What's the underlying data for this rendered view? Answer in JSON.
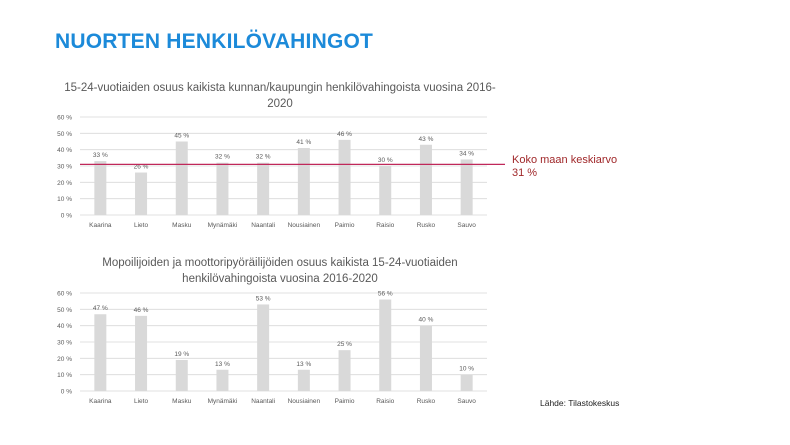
{
  "slide": {
    "title": "NUORTEN HENKILÖVAHINGOT",
    "source": "Lähde: Tilastokeskus"
  },
  "colors": {
    "title": "#1c8ad9",
    "bar": "#d9d9d9",
    "average_line": "#c0285a",
    "average_label": "#a0282a"
  },
  "chart_data": [
    {
      "type": "bar",
      "title": "15-24-vuotiaiden osuus kaikista kunnan/kaupungin henkilövahingoista vuosina 2016-2020",
      "categories": [
        "Kaarina",
        "Lieto",
        "Masku",
        "Mynämäki",
        "Naantali",
        "Nousiainen",
        "Paimio",
        "Raisio",
        "Rusko",
        "Sauvo"
      ],
      "values": [
        33,
        26,
        45,
        32,
        32,
        41,
        46,
        30,
        43,
        34
      ],
      "data_labels": [
        "33 %",
        "26 %",
        "45 %",
        "32 %",
        "32 %",
        "41 %",
        "46 %",
        "30 %",
        "43 %",
        "34 %"
      ],
      "ylim": [
        0,
        60
      ],
      "yticks": [
        "0 %",
        "10 %",
        "20 %",
        "30 %",
        "40 %",
        "50 %",
        "60 %"
      ],
      "grid": true,
      "reference_line": {
        "value": 31,
        "label": "Koko maan keskiarvo 31 %"
      }
    },
    {
      "type": "bar",
      "title": "Mopoilijoiden ja moottoripyöräilijöiden osuus kaikista 15-24-vuotiaiden henkilövahingoista vuosina 2016-2020",
      "categories": [
        "Kaarina",
        "Lieto",
        "Masku",
        "Mynämäki",
        "Naantali",
        "Nousiainen",
        "Paimio",
        "Raisio",
        "Rusko",
        "Sauvo"
      ],
      "values": [
        47,
        46,
        19,
        13,
        53,
        13,
        25,
        56,
        40,
        10
      ],
      "data_labels": [
        "47 %",
        "46 %",
        "19 %",
        "13 %",
        "53 %",
        "13 %",
        "25 %",
        "56 %",
        "40 %",
        "10 %"
      ],
      "ylim": [
        0,
        60
      ],
      "yticks": [
        "0 %",
        "10 %",
        "20 %",
        "30 %",
        "40 %",
        "50 %",
        "60 %"
      ],
      "grid": true
    }
  ]
}
